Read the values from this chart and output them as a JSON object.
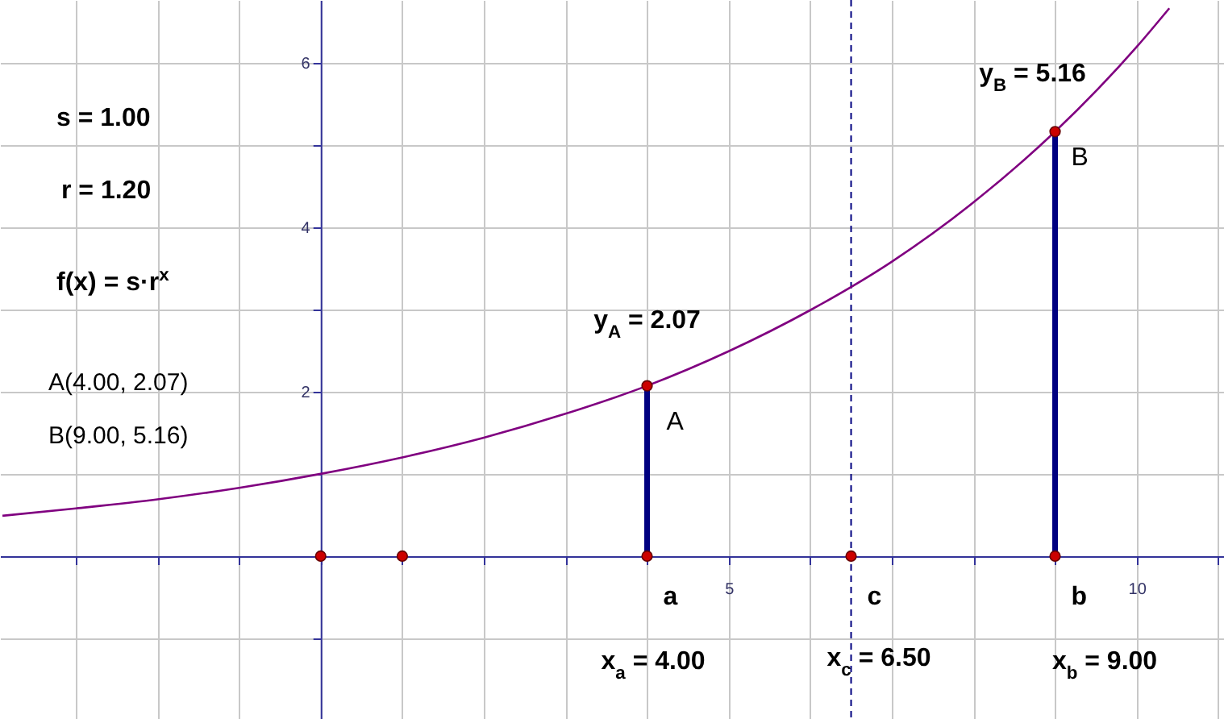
{
  "chart_data": {
    "type": "line",
    "x": [
      -3.9,
      -3,
      -2,
      -1,
      0,
      1,
      2,
      3,
      4,
      5,
      6,
      7,
      8,
      9,
      10,
      10.4
    ],
    "xlim": [
      -3.93,
      11.07
    ],
    "ylim": [
      -1.98,
      6.76
    ],
    "xticks": [
      {
        "value": -3,
        "label": null
      },
      {
        "value": -2,
        "label": null
      },
      {
        "value": -1,
        "label": null
      },
      {
        "value": 0,
        "label": null
      },
      {
        "value": 1,
        "label": null
      },
      {
        "value": 2,
        "label": null
      },
      {
        "value": 3,
        "label": null
      },
      {
        "value": 4,
        "label": null
      },
      5,
      {
        "value": 6,
        "label": null
      },
      {
        "value": 7,
        "label": null
      },
      {
        "value": 8,
        "label": null
      },
      {
        "value": 9,
        "label": null
      },
      10,
      {
        "value": 11,
        "label": null
      }
    ],
    "yticks": [
      {
        "value": -1,
        "label": null
      },
      {
        "value": 0,
        "label": null
      },
      {
        "value": 1,
        "label": null
      },
      2,
      {
        "value": 3,
        "label": null
      },
      4,
      {
        "value": 5,
        "label": null
      },
      6
    ],
    "grid": true,
    "series": [
      {
        "color": "#800080",
        "values": [
          0.49,
          0.58,
          0.69,
          0.83,
          1,
          1.2,
          1.44,
          1.73,
          2.07,
          2.49,
          2.99,
          3.58,
          4.3,
          5.16,
          6.19,
          6.66
        ]
      },
      {
        "color": "#000080",
        "x": [
          4,
          4
        ],
        "values": [
          0,
          2.07
        ]
      },
      {
        "color": "#000080",
        "x": [
          9,
          9
        ],
        "values": [
          0,
          5.16
        ]
      },
      {
        "type": "scatter",
        "color": "#cc0000",
        "x": [
          0,
          1,
          4,
          6.5,
          9,
          4,
          9
        ],
        "values": [
          0,
          0,
          0,
          0,
          0,
          2.07,
          5.16
        ]
      }
    ],
    "ref_lines": [
      {
        "axis": "x",
        "value": 6.5,
        "color": "#000080",
        "line_style": "dashed"
      }
    ],
    "annotations": [
      "s = 1.00",
      "r = 1.20",
      "f(x) = s·r$^{x}$",
      "A(4.00, 2.07)",
      "B(9.00, 5.16)",
      {
        "text": "A",
        "x": 4,
        "y": 2.07
      },
      {
        "text": "B",
        "x": 9,
        "y": 5.16
      },
      {
        "text": "y$_{A}$ = 2.07",
        "x": 4,
        "y": 2.07
      },
      {
        "text": "y$_{B}$ = 5.16",
        "x": 9,
        "y": 5.16
      },
      {
        "text": "a",
        "x": 4,
        "y": 0
      },
      {
        "text": "c",
        "x": 6.5,
        "y": 0
      },
      {
        "text": "b",
        "x": 9,
        "y": 0
      },
      "x$_{a}$ = 4.00",
      "x$_{c}$ = 6.50",
      "x$_{b}$ = 9.00"
    ]
  }
}
